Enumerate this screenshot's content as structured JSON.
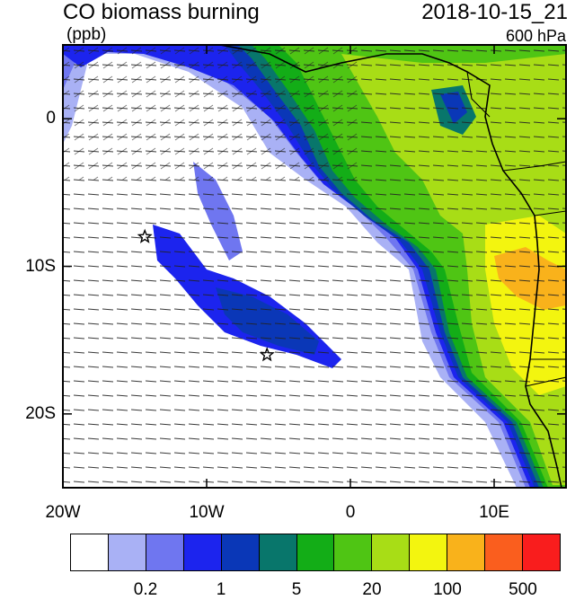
{
  "header": {
    "title": "CO biomass burning",
    "timestamp": "2018-10-15_21",
    "units": "(ppb)",
    "level": "600 hPa"
  },
  "axes": {
    "lat_ticks": [
      {
        "label": "0",
        "lat": 0
      },
      {
        "label": "10S",
        "lat": -10
      },
      {
        "label": "20S",
        "lat": -20
      }
    ],
    "lon_ticks": [
      {
        "label": "20W",
        "lon": -20
      },
      {
        "label": "10W",
        "lon": -10
      },
      {
        "label": "0",
        "lon": 0
      },
      {
        "label": "10E",
        "lon": 10
      }
    ],
    "lon_range": [
      -20,
      15
    ],
    "lat_range": [
      -25,
      5
    ]
  },
  "markers": [
    {
      "name": "star-marker-1",
      "lon": -14.3,
      "lat": -8.0
    },
    {
      "name": "star-marker-2",
      "lon": -5.8,
      "lat": -16.0
    }
  ],
  "colorbar": {
    "colors": [
      "#ffffff",
      "#a9b1f5",
      "#6f76f0",
      "#1c24ee",
      "#0a37b7",
      "#08766b",
      "#13ad17",
      "#4fc514",
      "#a8dd16",
      "#f3f50f",
      "#f9b21b",
      "#fa5e1e",
      "#f91d1d"
    ],
    "labels": [
      {
        "text": "0.2",
        "boundary": 2
      },
      {
        "text": "1",
        "boundary": 4
      },
      {
        "text": "5",
        "boundary": 6
      },
      {
        "text": "20",
        "boundary": 8
      },
      {
        "text": "100",
        "boundary": 10
      },
      {
        "text": "500",
        "boundary": 12
      }
    ]
  }
}
